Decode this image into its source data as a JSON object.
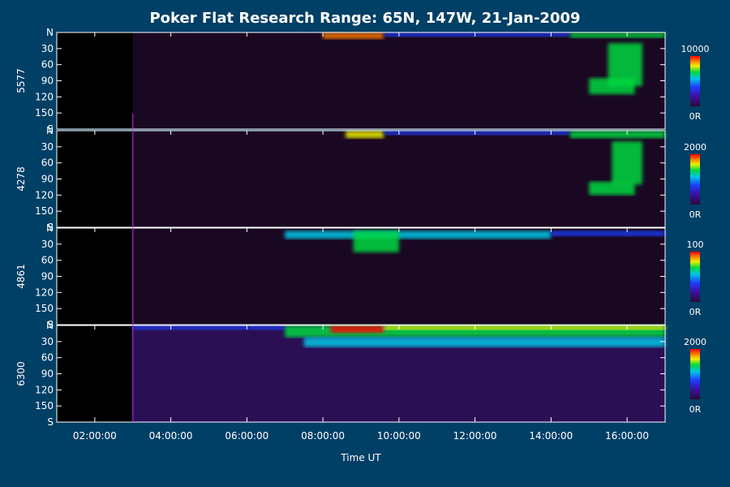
{
  "chart_data": {
    "type": "heatmap",
    "title": "Poker Flat Research Range: 65N, 147W, 21-Jan-2009",
    "xlabel": "Time UT",
    "x_ticks": [
      "02:00:00",
      "04:00:00",
      "06:00:00",
      "08:00:00",
      "10:00:00",
      "12:00:00",
      "14:00:00",
      "16:00:00"
    ],
    "x_tick_hours": [
      2,
      4,
      6,
      8,
      10,
      12,
      14,
      16
    ],
    "xlim_hours": [
      1.0,
      17.0
    ],
    "y_ticks": [
      "N",
      "30",
      "60",
      "90",
      "120",
      "150",
      "S"
    ],
    "y_tick_values": [
      0,
      30,
      60,
      90,
      120,
      150,
      180
    ],
    "ylim": [
      0,
      180
    ],
    "colormap": [
      "#2a0a3a",
      "#3c10a0",
      "#1f3cff",
      "#00c8e6",
      "#00d840",
      "#f0f000",
      "#ff7a00",
      "#ff0000"
    ],
    "panels": [
      {
        "ylabel": "5577",
        "colorbar_max": "10000",
        "colorbar_min": "0R",
        "features": [
          {
            "t_start": 8.0,
            "t_end": 9.6,
            "y_start": 0,
            "y_end": 12,
            "level": 0.9
          },
          {
            "t_start": 9.6,
            "t_end": 14.5,
            "y_start": 0,
            "y_end": 8,
            "level": 0.35
          },
          {
            "t_start": 14.5,
            "t_end": 17.0,
            "y_start": 0,
            "y_end": 10,
            "level": 0.6
          },
          {
            "t_start": 15.5,
            "t_end": 16.4,
            "y_start": 20,
            "y_end": 100,
            "level": 0.55
          },
          {
            "t_start": 15.0,
            "t_end": 16.2,
            "y_start": 85,
            "y_end": 115,
            "level": 0.5
          }
        ]
      },
      {
        "ylabel": "4278",
        "colorbar_max": "2000",
        "colorbar_min": "0R",
        "features": [
          {
            "t_start": 8.6,
            "t_end": 9.6,
            "y_start": 0,
            "y_end": 14,
            "level": 0.75
          },
          {
            "t_start": 9.6,
            "t_end": 14.5,
            "y_start": 0,
            "y_end": 8,
            "level": 0.3
          },
          {
            "t_start": 14.5,
            "t_end": 17.0,
            "y_start": 0,
            "y_end": 14,
            "level": 0.55
          },
          {
            "t_start": 15.6,
            "t_end": 16.4,
            "y_start": 20,
            "y_end": 100,
            "level": 0.55
          },
          {
            "t_start": 15.0,
            "t_end": 16.2,
            "y_start": 95,
            "y_end": 120,
            "level": 0.5
          }
        ]
      },
      {
        "ylabel": "4861",
        "colorbar_max": "100",
        "colorbar_min": "0R",
        "features": [
          {
            "t_start": 7.0,
            "t_end": 14.0,
            "y_start": 5,
            "y_end": 20,
            "level": 0.4
          },
          {
            "t_start": 8.8,
            "t_end": 10.0,
            "y_start": 5,
            "y_end": 45,
            "level": 0.55
          },
          {
            "t_start": 14.0,
            "t_end": 17.0,
            "y_start": 5,
            "y_end": 15,
            "level": 0.3
          }
        ]
      },
      {
        "ylabel": "6300",
        "colorbar_max": "2000",
        "colorbar_min": "0R",
        "features": [
          {
            "t_start": 3.0,
            "t_end": 7.0,
            "y_start": 0,
            "y_end": 8,
            "level": 0.3
          },
          {
            "t_start": 7.0,
            "t_end": 17.0,
            "y_start": 0,
            "y_end": 22,
            "level": 0.6
          },
          {
            "t_start": 8.2,
            "t_end": 9.6,
            "y_start": 0,
            "y_end": 14,
            "level": 1.0
          },
          {
            "t_start": 9.6,
            "t_end": 17.0,
            "y_start": 0,
            "y_end": 8,
            "level": 0.75
          },
          {
            "t_start": 7.5,
            "t_end": 17.0,
            "y_start": 22,
            "y_end": 40,
            "level": 0.45
          }
        ]
      }
    ],
    "grid": false,
    "legend": "colorbars-right"
  }
}
